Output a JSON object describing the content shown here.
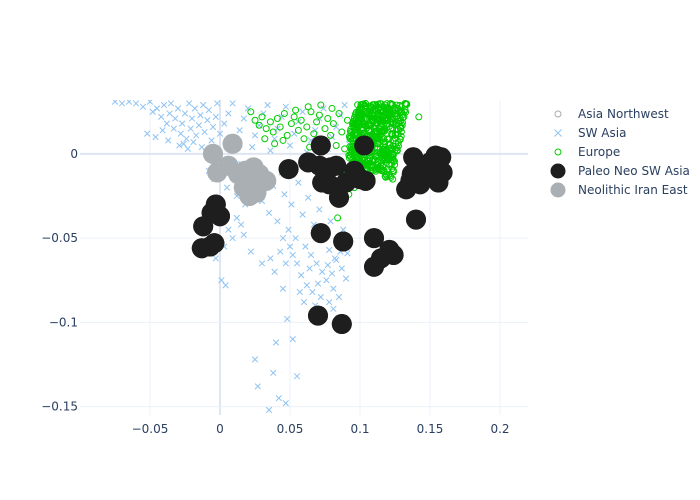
{
  "chart_data": {
    "type": "scatter",
    "title": "",
    "xlabel": "",
    "ylabel": "",
    "xlim": [
      -0.1,
      0.22
    ],
    "ylim": [
      -0.155,
      0.032
    ],
    "x_ticks": [
      -0.05,
      0,
      0.05,
      0.1,
      0.15,
      0.2
    ],
    "x_tick_labels": [
      "−0.05",
      "0",
      "0.05",
      "0.1",
      "0.15",
      "0.2"
    ],
    "y_ticks": [
      0,
      -0.05,
      -0.1,
      -0.15
    ],
    "y_tick_labels": [
      "0",
      "−0.05",
      "−0.1",
      "−0.15"
    ],
    "grid": true,
    "legend_position": "top-right",
    "colors": {
      "asia_northwest": "#aaaaaa",
      "sw_asia": "#8ec3f2",
      "europe": "#00cc00",
      "paleo_neo": "#1e1e1e",
      "neolithic_iran_east": "#a9afb3",
      "grid": "#ebf0f8",
      "tick_text": "#2a3f5f"
    },
    "series": [
      {
        "name": "Asia Northwest",
        "marker": "open-circle",
        "points": []
      },
      {
        "name": "SW Asia",
        "marker": "x",
        "points": [
          [
            -0.075,
            0.031
          ],
          [
            -0.07,
            0.03
          ],
          [
            -0.065,
            0.031
          ],
          [
            -0.06,
            0.03
          ],
          [
            -0.055,
            0.028
          ],
          [
            -0.05,
            0.031
          ],
          [
            -0.048,
            0.025
          ],
          [
            -0.045,
            0.027
          ],
          [
            -0.042,
            0.022
          ],
          [
            -0.04,
            0.029
          ],
          [
            -0.038,
            0.018
          ],
          [
            -0.036,
            0.024
          ],
          [
            -0.035,
            0.03
          ],
          [
            -0.033,
            0.015
          ],
          [
            -0.032,
            0.021
          ],
          [
            -0.03,
            0.027
          ],
          [
            -0.028,
            0.012
          ],
          [
            -0.027,
            0.018
          ],
          [
            -0.025,
            0.024
          ],
          [
            -0.024,
            0.009
          ],
          [
            -0.022,
            0.03
          ],
          [
            -0.021,
            0.015
          ],
          [
            -0.02,
            0.021
          ],
          [
            -0.018,
            0.027
          ],
          [
            -0.017,
            0.011
          ],
          [
            -0.015,
            0.017
          ],
          [
            -0.014,
            0.023
          ],
          [
            -0.012,
            0.029
          ],
          [
            -0.011,
            0.013
          ],
          [
            -0.009,
            0.02
          ],
          [
            -0.008,
            0.026
          ],
          [
            -0.006,
            0.008
          ],
          [
            -0.005,
            0.016
          ],
          [
            -0.003,
            0.022
          ],
          [
            -0.002,
            0.03
          ],
          [
            -0.052,
            0.012
          ],
          [
            -0.046,
            0.01
          ],
          [
            -0.041,
            0.014
          ],
          [
            -0.037,
            0.008
          ],
          [
            -0.029,
            0.005
          ],
          [
            -0.026,
            0.006
          ],
          [
            -0.023,
            0.003
          ],
          [
            -0.019,
            0.007
          ],
          [
            -0.013,
            0.004
          ],
          [
            -0.01,
            0.001
          ],
          [
            0.0,
            0.012
          ],
          [
            0.003,
            0.018
          ],
          [
            0.006,
            0.024
          ],
          [
            0.009,
            0.03
          ],
          [
            0.012,
            0.006
          ],
          [
            0.014,
            0.014
          ],
          [
            0.017,
            0.021
          ],
          [
            0.02,
            0.027
          ],
          [
            0.023,
            0.004
          ],
          [
            0.025,
            0.011
          ],
          [
            0.028,
            0.017
          ],
          [
            0.031,
            0.024
          ],
          [
            0.034,
            0.029
          ],
          [
            0.036,
            0.002
          ],
          [
            0.039,
            0.009
          ],
          [
            0.041,
            0.015
          ],
          [
            0.044,
            0.022
          ],
          [
            0.047,
            0.028
          ],
          [
            0.05,
            0.005
          ],
          [
            0.053,
            0.012
          ],
          [
            0.056,
            0.019
          ],
          [
            0.059,
            0.025
          ],
          [
            0.062,
            0.001
          ],
          [
            0.065,
            0.008
          ],
          [
            0.068,
            0.014
          ],
          [
            0.071,
            0.021
          ],
          [
            0.074,
            0.027
          ],
          [
            0.077,
            0.003
          ],
          [
            0.08,
            0.01
          ],
          [
            0.083,
            0.016
          ],
          [
            0.086,
            0.023
          ],
          [
            0.089,
            0.029
          ],
          [
            0.092,
            0.006
          ],
          [
            0.095,
            0.013
          ],
          [
            -0.008,
            -0.01
          ],
          [
            -0.004,
            -0.015
          ],
          [
            0.001,
            -0.008
          ],
          [
            0.005,
            -0.02
          ],
          [
            0.008,
            -0.012
          ],
          [
            0.012,
            -0.025
          ],
          [
            0.015,
            -0.006
          ],
          [
            0.018,
            -0.03
          ],
          [
            0.02,
            -0.016
          ],
          [
            0.024,
            -0.022
          ],
          [
            0.027,
            -0.009
          ],
          [
            0.03,
            -0.028
          ],
          [
            0.033,
            -0.014
          ],
          [
            0.035,
            -0.035
          ],
          [
            0.038,
            -0.019
          ],
          [
            0.041,
            -0.04
          ],
          [
            0.044,
            -0.011
          ],
          [
            0.046,
            -0.024
          ],
          [
            0.049,
            -0.045
          ],
          [
            0.051,
            -0.03
          ],
          [
            0.054,
            -0.05
          ],
          [
            0.056,
            -0.017
          ],
          [
            0.059,
            -0.036
          ],
          [
            0.061,
            -0.055
          ],
          [
            0.063,
            -0.026
          ],
          [
            0.065,
            -0.06
          ],
          [
            0.067,
            -0.042
          ],
          [
            0.069,
            -0.065
          ],
          [
            0.071,
            -0.033
          ],
          [
            0.073,
            -0.07
          ],
          [
            0.075,
            -0.048
          ],
          [
            0.076,
            -0.075
          ],
          [
            0.078,
            -0.057
          ],
          [
            0.079,
            -0.04
          ],
          [
            0.081,
            -0.08
          ],
          [
            0.082,
            -0.062
          ],
          [
            0.084,
            -0.052
          ],
          [
            0.085,
            -0.085
          ],
          [
            0.087,
            -0.068
          ],
          [
            0.088,
            -0.045
          ],
          [
            0.09,
            -0.074
          ],
          [
            0.091,
            -0.059
          ],
          [
            0.068,
            -0.09
          ],
          [
            0.072,
            -0.085
          ],
          [
            0.074,
            -0.095
          ],
          [
            0.058,
            -0.072
          ],
          [
            0.062,
            -0.078
          ],
          [
            0.055,
            -0.065
          ],
          [
            0.066,
            -0.082
          ],
          [
            0.07,
            -0.077
          ],
          [
            0.077,
            -0.066
          ],
          [
            0.08,
            -0.071
          ],
          [
            0.083,
            -0.063
          ],
          [
            0.086,
            -0.058
          ],
          [
            0.089,
            -0.05
          ],
          [
            0.06,
            -0.088
          ],
          [
            0.057,
            -0.082
          ],
          [
            0.064,
            -0.068
          ],
          [
            0.078,
            -0.088
          ],
          [
            0.081,
            -0.092
          ],
          [
            0.0,
            -0.035
          ],
          [
            0.003,
            -0.055
          ],
          [
            0.006,
            -0.045
          ],
          [
            0.009,
            -0.05
          ],
          [
            0.012,
            -0.038
          ],
          [
            0.015,
            -0.042
          ],
          [
            -0.003,
            -0.062
          ],
          [
            0.001,
            -0.075
          ],
          [
            0.004,
            -0.078
          ],
          [
            0.017,
            -0.048
          ],
          [
            0.022,
            -0.058
          ],
          [
            0.03,
            -0.065
          ],
          [
            0.036,
            -0.062
          ],
          [
            0.039,
            -0.07
          ],
          [
            0.045,
            -0.08
          ],
          [
            0.048,
            -0.098
          ],
          [
            0.052,
            -0.11
          ],
          [
            0.04,
            -0.112
          ],
          [
            0.025,
            -0.122
          ],
          [
            0.038,
            -0.13
          ],
          [
            0.027,
            -0.138
          ],
          [
            0.035,
            -0.152
          ],
          [
            0.042,
            -0.145
          ],
          [
            0.047,
            -0.148
          ],
          [
            0.055,
            -0.132
          ],
          [
            0.045,
            -0.05
          ],
          [
            0.05,
            -0.055
          ],
          [
            0.052,
            -0.06
          ],
          [
            0.047,
            -0.065
          ],
          [
            0.043,
            -0.058
          ]
        ]
      },
      {
        "name": "Europe",
        "marker": "open-circle",
        "points": [
          [
            0.025,
            0.02
          ],
          [
            0.028,
            0.017
          ],
          [
            0.03,
            0.022
          ],
          [
            0.033,
            0.015
          ],
          [
            0.036,
            0.019
          ],
          [
            0.038,
            0.013
          ],
          [
            0.041,
            0.021
          ],
          [
            0.043,
            0.016
          ],
          [
            0.046,
            0.024
          ],
          [
            0.048,
            0.011
          ],
          [
            0.051,
            0.018
          ],
          [
            0.053,
            0.022
          ],
          [
            0.056,
            0.014
          ],
          [
            0.058,
            0.02
          ],
          [
            0.06,
            0.009
          ],
          [
            0.062,
            0.016
          ],
          [
            0.065,
            0.025
          ],
          [
            0.067,
            0.012
          ],
          [
            0.069,
            0.019
          ],
          [
            0.071,
            0.023
          ],
          [
            0.073,
            0.007
          ],
          [
            0.075,
            0.015
          ],
          [
            0.077,
            0.021
          ],
          [
            0.079,
            0.011
          ],
          [
            0.081,
            0.018
          ],
          [
            0.083,
            0.005
          ],
          [
            0.085,
            0.024
          ],
          [
            0.087,
            0.013
          ],
          [
            0.089,
            0.003
          ],
          [
            0.091,
            0.02
          ],
          [
            0.093,
            0.009
          ],
          [
            0.095,
            -0.003
          ],
          [
            0.097,
            0.017
          ],
          [
            0.099,
            0.006
          ],
          [
            0.101,
            -0.008
          ],
          [
            0.054,
            0.026
          ],
          [
            0.063,
            0.028
          ],
          [
            0.072,
            0.029
          ],
          [
            0.08,
            0.027
          ],
          [
            0.045,
            0.008
          ],
          [
            0.039,
            0.006
          ],
          [
            0.032,
            0.009
          ],
          [
            0.022,
            0.025
          ],
          [
            0.082,
            -0.009
          ],
          [
            0.085,
            -0.018
          ],
          [
            0.088,
            -0.026
          ],
          [
            0.092,
            -0.024
          ],
          [
            0.096,
            -0.02
          ],
          [
            0.09,
            -0.012
          ],
          [
            0.086,
            -0.005
          ],
          [
            0.084,
            -0.038
          ],
          [
            0.094,
            -0.014
          ],
          [
            0.098,
            -0.017
          ],
          [
            0.142,
            0.022
          ],
          [
            0.064,
            0.004
          ]
        ]
      },
      {
        "name": "Paleo Neo SW Asia",
        "marker": "big-circle",
        "points": [
          [
            -0.003,
            -0.03
          ],
          [
            -0.006,
            -0.035
          ],
          [
            0.0,
            -0.037
          ],
          [
            -0.012,
            -0.043
          ],
          [
            -0.004,
            -0.053
          ],
          [
            -0.007,
            -0.055
          ],
          [
            -0.013,
            -0.056
          ],
          [
            0.049,
            -0.009
          ],
          [
            0.063,
            -0.005
          ],
          [
            0.071,
            -0.007
          ],
          [
            0.072,
            0.005
          ],
          [
            0.079,
            -0.008
          ],
          [
            0.083,
            -0.007
          ],
          [
            0.073,
            -0.017
          ],
          [
            0.078,
            -0.018
          ],
          [
            0.084,
            -0.02
          ],
          [
            0.085,
            -0.026
          ],
          [
            0.09,
            -0.017
          ],
          [
            0.096,
            -0.01
          ],
          [
            0.098,
            -0.013
          ],
          [
            0.1,
            -0.015
          ],
          [
            0.104,
            -0.016
          ],
          [
            0.103,
            0.005
          ],
          [
            0.072,
            -0.047
          ],
          [
            0.088,
            -0.052
          ],
          [
            0.11,
            -0.05
          ],
          [
            0.11,
            -0.067
          ],
          [
            0.115,
            -0.062
          ],
          [
            0.121,
            -0.057
          ],
          [
            0.124,
            -0.06
          ],
          [
            0.07,
            -0.096
          ],
          [
            0.087,
            -0.101
          ],
          [
            0.133,
            -0.021
          ],
          [
            0.137,
            -0.012
          ],
          [
            0.138,
            -0.002
          ],
          [
            0.14,
            -0.039
          ],
          [
            0.143,
            -0.018
          ],
          [
            0.147,
            -0.008
          ],
          [
            0.15,
            -0.005
          ],
          [
            0.154,
            -0.001
          ],
          [
            0.156,
            -0.017
          ],
          [
            0.158,
            -0.002
          ],
          [
            0.159,
            -0.011
          ],
          [
            0.136,
            -0.016
          ],
          [
            0.145,
            -0.014
          ]
        ]
      },
      {
        "name": "Neolithic Iran East",
        "marker": "big-circle",
        "points": [
          [
            -0.005,
            0.0
          ],
          [
            0.009,
            0.006
          ],
          [
            -0.002,
            -0.011
          ],
          [
            0.006,
            -0.007
          ],
          [
            0.013,
            -0.012
          ],
          [
            0.018,
            -0.01
          ],
          [
            0.024,
            -0.008
          ],
          [
            0.028,
            -0.012
          ],
          [
            0.033,
            -0.016
          ],
          [
            0.017,
            -0.02
          ],
          [
            0.022,
            -0.018
          ],
          [
            0.026,
            -0.023
          ],
          [
            0.021,
            -0.025
          ],
          [
            0.03,
            -0.015
          ]
        ]
      }
    ]
  }
}
